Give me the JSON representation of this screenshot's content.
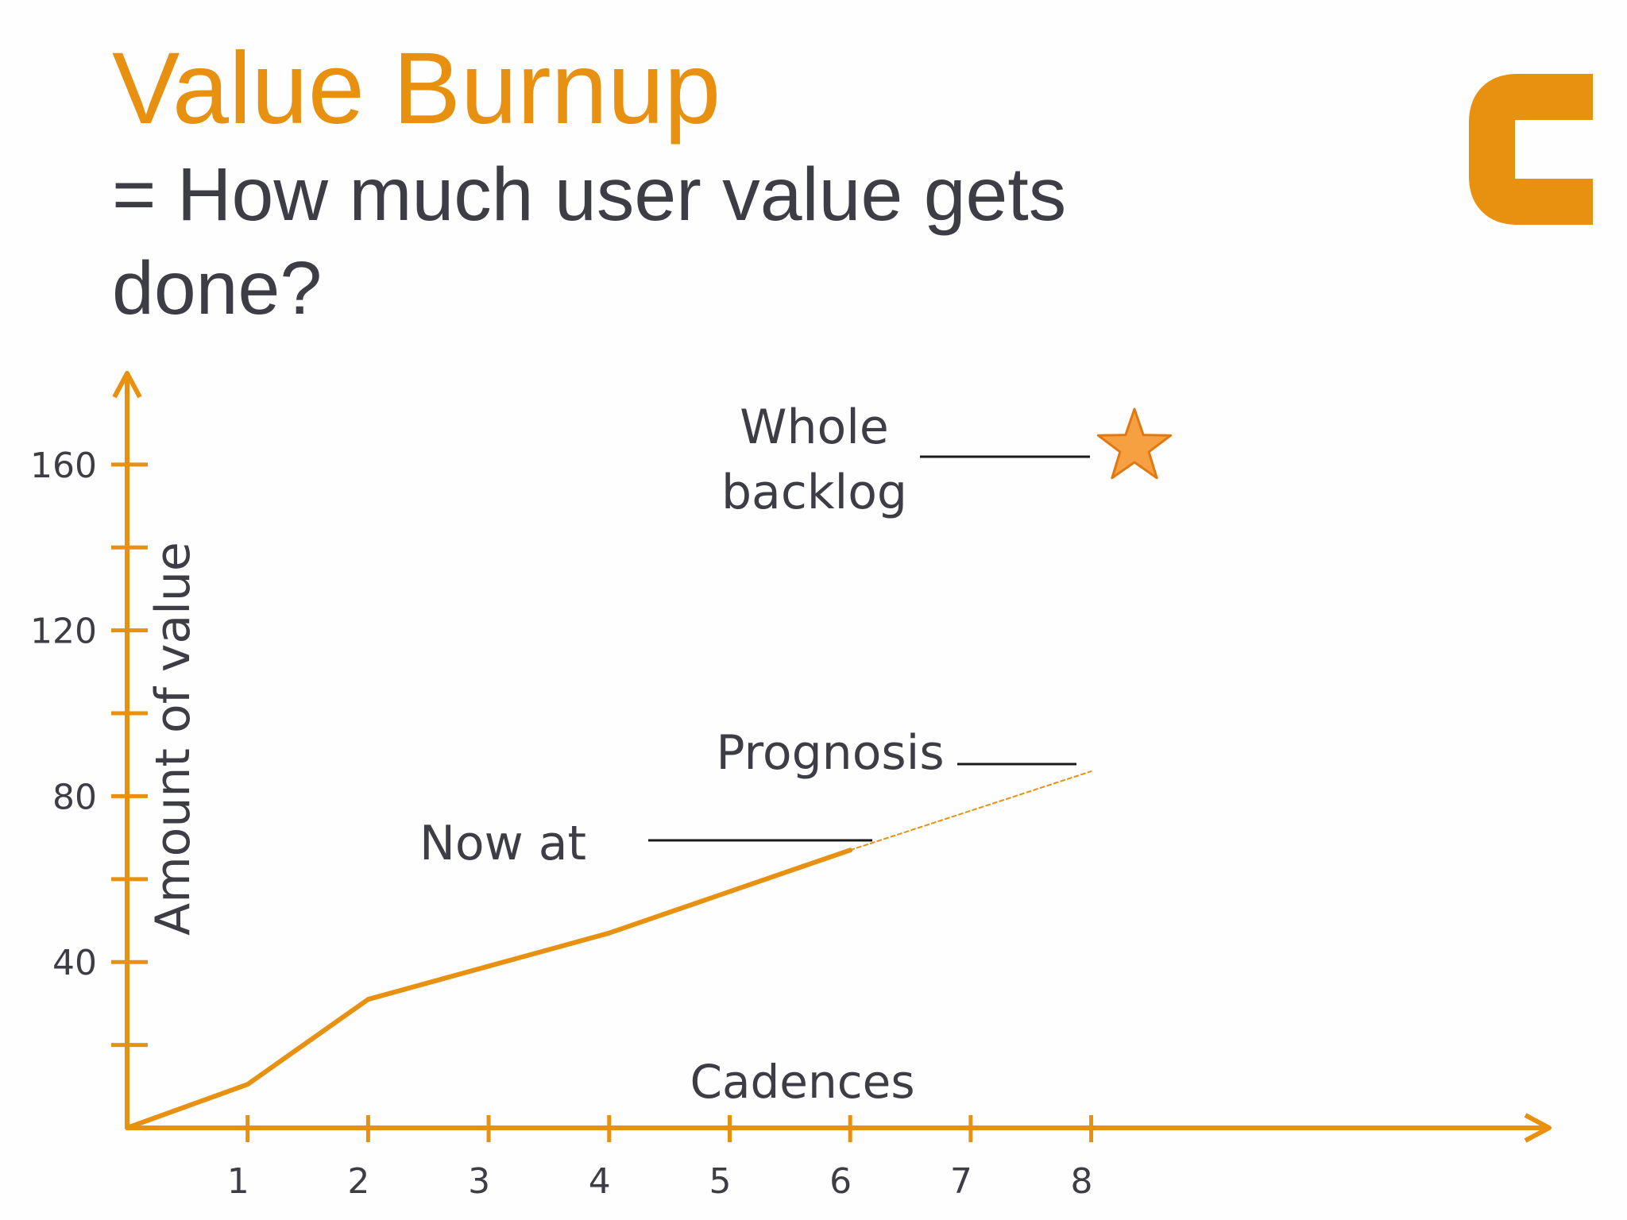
{
  "slide": {
    "title": "Value Burnup",
    "subtitle": "= How much user value gets done?",
    "logo_icon": "brand-logo-c-icon",
    "accent_color": "#e8900f",
    "text_color": "#3d3d45"
  },
  "chart_data": {
    "type": "line",
    "title": "",
    "xlabel": "Cadences",
    "ylabel": "Amount of value",
    "xlim": [
      0,
      11.8
    ],
    "ylim": [
      0,
      182
    ],
    "x_ticks": [
      1,
      2,
      3,
      4,
      5,
      6,
      7,
      8
    ],
    "x_tick_labels": [
      "1",
      "2",
      "3",
      "4",
      "5",
      "6",
      "7",
      "8"
    ],
    "y_ticks": [
      20,
      40,
      60,
      80,
      100,
      120,
      140,
      160
    ],
    "y_tick_labels": [
      "",
      "40",
      "",
      "80",
      "",
      "120",
      "",
      "160"
    ],
    "grid": false,
    "series": [
      {
        "style": "solid",
        "points": [
          [
            0,
            0
          ],
          [
            1,
            10.5
          ],
          [
            2,
            31
          ],
          [
            4,
            47
          ],
          [
            6,
            67
          ]
        ]
      },
      {
        "style": "dashed",
        "points": [
          [
            6,
            67
          ],
          [
            8,
            86
          ]
        ]
      }
    ],
    "annotations": [
      {
        "id": "whole-backlog",
        "lines": [
          "Whole",
          "backlog"
        ],
        "marker": "star",
        "point": [
          8,
          161
        ]
      },
      {
        "id": "prognosis",
        "lines": [
          "Prognosis"
        ]
      },
      {
        "id": "now-at",
        "lines": [
          "Now at"
        ]
      }
    ]
  }
}
